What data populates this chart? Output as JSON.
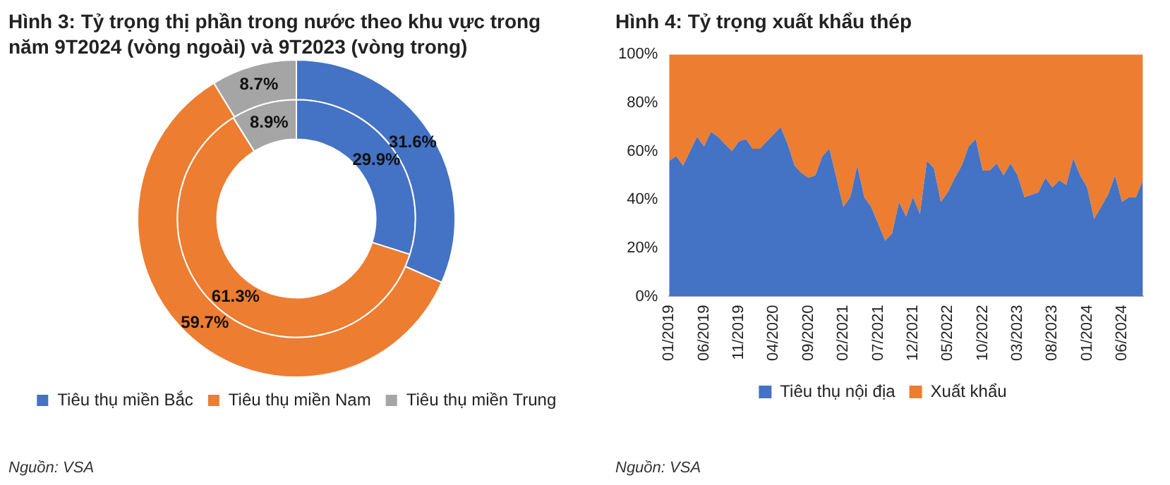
{
  "chart_data": [
    {
      "type": "donut",
      "title": "Hình 3: Tỷ trọng thị phần trong nước theo khu vực trong năm 9T2024 (vòng ngoài) và 9T2023 (vòng trong)",
      "categories": [
        "Tiêu thụ miền Bắc",
        "Tiêu thụ miền Nam",
        "Tiêu thụ miền Trung"
      ],
      "colors": [
        "#4472c4",
        "#ed7d31",
        "#a5a5a5"
      ],
      "series": [
        {
          "values": [
            31.6,
            59.7,
            8.7
          ],
          "value_labels": [
            "31.6%",
            "59.7%",
            "8.7%"
          ]
        },
        {
          "values": [
            29.9,
            61.3,
            8.9
          ],
          "value_labels": [
            "29.9%",
            "61.3%",
            "8.9%"
          ]
        }
      ],
      "legend": "bottom",
      "annotations": [
        "Nguồn: VSA"
      ]
    },
    {
      "type": "area",
      "title": "Hình 4: Tỷ trọng xuất khẩu thép",
      "stacked": true,
      "legend": "bottom",
      "categories": [
        "01/2019",
        null,
        null,
        null,
        null,
        "06/2019",
        null,
        null,
        null,
        null,
        "11/2019",
        null,
        null,
        null,
        null,
        "04/2020",
        null,
        null,
        null,
        null,
        "09/2020",
        null,
        null,
        null,
        null,
        "02/2021",
        null,
        null,
        null,
        null,
        "07/2021",
        null,
        null,
        null,
        null,
        "12/2021",
        null,
        null,
        null,
        null,
        "05/2022",
        null,
        null,
        null,
        null,
        "10/2022",
        null,
        null,
        null,
        null,
        "03/2023",
        null,
        null,
        null,
        null,
        "08/2023",
        null,
        null,
        null,
        null,
        "01/2024",
        null,
        null,
        null,
        null,
        "06/2024",
        null,
        null,
        null
      ],
      "series": [
        {
          "name": "Tiêu thụ nội địa",
          "color": "#4472c4",
          "values": [
            56,
            58,
            54,
            60,
            66,
            62,
            68,
            66,
            63,
            60,
            64,
            65,
            61,
            61,
            64,
            67,
            70,
            63,
            54,
            51,
            49,
            50,
            58,
            61,
            49,
            37,
            41,
            54,
            41,
            37,
            30,
            23,
            26,
            39,
            33,
            41,
            34,
            56,
            53,
            39,
            43,
            49,
            54,
            62,
            65,
            52,
            52,
            55,
            50,
            55,
            50,
            41,
            42,
            43,
            49,
            45,
            48,
            46,
            57,
            50,
            45,
            32,
            37,
            42,
            50,
            39,
            41,
            41,
            48
          ]
        },
        {
          "name": "Xuất khẩu",
          "color": "#ed7d31",
          "values": [
            44,
            42,
            46,
            40,
            34,
            38,
            32,
            34,
            37,
            40,
            36,
            35,
            39,
            39,
            36,
            33,
            30,
            37,
            46,
            49,
            51,
            50,
            42,
            39,
            51,
            63,
            59,
            46,
            59,
            63,
            70,
            77,
            74,
            61,
            67,
            59,
            66,
            44,
            47,
            61,
            57,
            51,
            46,
            38,
            35,
            48,
            48,
            45,
            50,
            45,
            50,
            59,
            58,
            57,
            51,
            55,
            52,
            54,
            43,
            50,
            55,
            68,
            63,
            58,
            50,
            61,
            59,
            59,
            52
          ]
        }
      ],
      "ylim": [
        0,
        100
      ],
      "yticks": [
        {
          "value": 0,
          "label": "0%"
        },
        {
          "value": 20,
          "label": "20%"
        },
        {
          "value": 40,
          "label": "40%"
        },
        {
          "value": 60,
          "label": "60%"
        },
        {
          "value": 80,
          "label": "80%"
        },
        {
          "value": 100,
          "label": "100%"
        }
      ],
      "annotations": [
        "Nguồn: VSA"
      ]
    }
  ]
}
